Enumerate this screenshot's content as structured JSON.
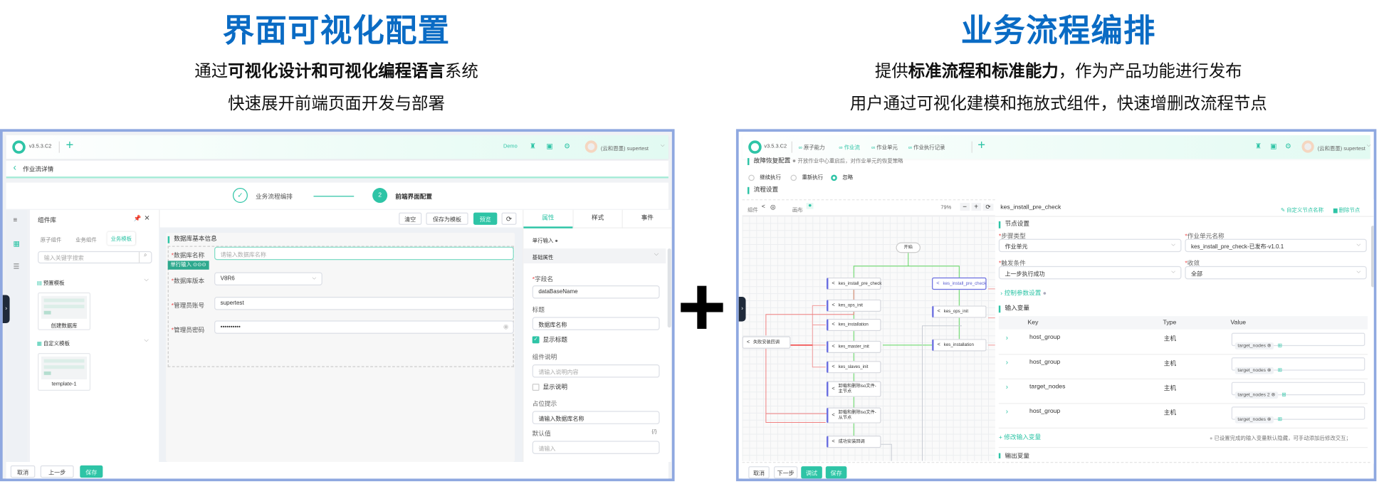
{
  "headings": {
    "left_title": "界面可视化配置",
    "left_sub1_pre": "通过",
    "left_sub1_bold": "可视化设计和可视化编程语言",
    "left_sub1_post": "系统",
    "left_sub2": "快速展开前端页面开发与部署",
    "right_title": "业务流程编排",
    "right_sub1_pre": "提供",
    "right_sub1_bold": "标准流程和标准能力",
    "right_sub1_post": "，作为产品功能进行发布",
    "right_sub2": "用户通过可视化建模和拖放式组件，快速增删改流程节点",
    "plus": "+"
  },
  "colors": {
    "accent": "#2ec4a6",
    "heading": "#0a6bc4",
    "frame": "#8fa8e0",
    "edge_success": "#3ccf3c",
    "edge_fail": "#f06a6a",
    "node_selected": "#6b6fe0"
  },
  "left": {
    "header": {
      "version": "v3.5.3.C2",
      "add": "+",
      "demo": "Demo",
      "user": "(云和恩墨) supertest"
    },
    "breadcrumb": {
      "back": "‹",
      "label": "作业流详情"
    },
    "steps": [
      {
        "label": "业务流程编排",
        "icon": "✓",
        "state": "done"
      },
      {
        "label": "前端界面配置",
        "icon": "2",
        "state": "active"
      }
    ],
    "library": {
      "title": "组件库",
      "tabs": [
        "原子组件",
        "业务组件",
        "业务模板"
      ],
      "active_tab": "业务模板",
      "search_placeholder": "输入关键字搜索",
      "sections": [
        {
          "title": "预置模板",
          "cards": [
            "创建数据库"
          ]
        },
        {
          "title": "自定义模板",
          "cards": [
            "template-1"
          ]
        }
      ]
    },
    "toolbar": {
      "clear": "清空",
      "save_template": "保存为模板",
      "preview": "预览"
    },
    "form": {
      "title": "数据库基本信息",
      "component_tag": "单行输入",
      "fields": [
        {
          "label": "数据库名称",
          "placeholder": "请输入数据库名称",
          "value": ""
        },
        {
          "label": "数据库版本",
          "value": "V8R6",
          "type": "select"
        },
        {
          "label": "管理员账号",
          "value": "supertest"
        },
        {
          "label": "管理员密码",
          "value": "••••••••••",
          "type": "password"
        }
      ]
    },
    "props": {
      "tabs": [
        "属性",
        "样式",
        "事件"
      ],
      "active_tab": "属性",
      "component": "单行输入",
      "group": "基础属性",
      "field_name_label": "字段名",
      "field_name": "dataBaseName",
      "title_label": "标题",
      "title_value": "数据库名称",
      "show_title": "显示标题",
      "show_title_checked": true,
      "desc_label": "组件说明",
      "desc_placeholder": "请输入说明内容",
      "show_desc": "显示说明",
      "show_desc_checked": false,
      "placeholder_label": "占位提示",
      "placeholder_value": "请输入数据库名称",
      "default_label": "默认值",
      "default_expr": "{/}",
      "default_placeholder": "请输入"
    },
    "footer": {
      "cancel": "取消",
      "prev": "上一步",
      "save": "保存"
    }
  },
  "right": {
    "header": {
      "version": "v3.5.3.C2",
      "nav": [
        "原子能力",
        "作业流",
        "作业单元",
        "作业执行记录"
      ],
      "active_nav": "作业流",
      "add": "+",
      "user": "(云和恩墨) supertest"
    },
    "recovery": {
      "title": "故障恢复配置",
      "hint": "开放作业中心重启后，对作业单元的恢复策略",
      "options": [
        "继续执行",
        "重新执行",
        "忽略"
      ],
      "selected": "忽略"
    },
    "flow_title": "流程设置",
    "canvas_toolbar": {
      "components": "组件",
      "canvas": "画布",
      "zoom": "79%",
      "zoom_out": "−",
      "zoom_in": "+",
      "reset": "⟳"
    },
    "flow": {
      "start": "开始",
      "nodes": [
        "kes_install_pre_check",
        "kes_ops_init",
        "kes_installation",
        "kes_master_init",
        "kes_slaves_init",
        "卸载和删除iso文件-主节点",
        "卸载和删除iso文件-从节点",
        "成功安装回调",
        "kes_install_pre_check",
        "kes_ops_init",
        "kes_installation",
        "失败安装回调"
      ]
    },
    "detail": {
      "node_name": "kes_install_pre_check",
      "rename": "自定义节点名称",
      "delete": "删除节点",
      "section": "节点设置",
      "step_type_label": "步骤类型",
      "step_type": "作业单元",
      "unit_label": "作业单元名称",
      "unit": "kes_install_pre_check-已发布-v1.0.1",
      "trigger_label": "触发条件",
      "trigger": "上一步执行成功",
      "converge_label": "收敛",
      "converge": "全部",
      "control": "控制参数设置",
      "inputs_title": "输入变量",
      "columns": [
        "Key",
        "Type",
        "Value"
      ],
      "rows": [
        {
          "key": "host_group",
          "type": "主机",
          "value": "target_nodes"
        },
        {
          "key": "host_group",
          "type": "主机",
          "value": "target_nodes"
        },
        {
          "key": "target_nodes",
          "type": "主机",
          "value": "target_nodes 2"
        },
        {
          "key": "host_group",
          "type": "主机",
          "value": "target_nodes"
        }
      ],
      "modify_inputs": "修改输入变量",
      "inputs_hint": "已设置完成的输入变量默认隐藏，可手动添加后修改交互；",
      "outputs_title": "输出变量"
    },
    "footer": {
      "cancel": "取消",
      "next": "下一步",
      "debug": "调试",
      "save": "保存"
    }
  }
}
